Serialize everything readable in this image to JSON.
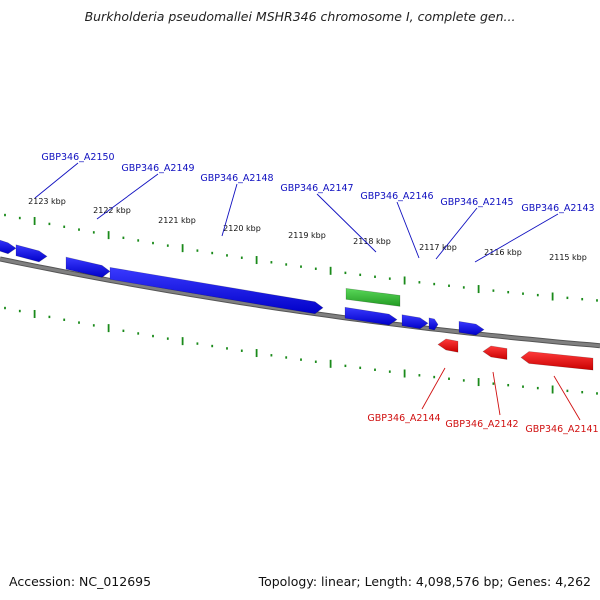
{
  "header": {
    "title": "Burkholderia pseudomallei MSHR346 chromosome I, complete gen..."
  },
  "footer": {
    "accession": "Accession: NC_012695",
    "summary": "Topology: linear; Length: 4,098,576 bp; Genes: 4,262"
  },
  "colors": {
    "forward_gene": "#1010e0",
    "reverse_gene": "#e01010",
    "rna_gene": "#30c030",
    "backbone": "#808080",
    "tick": "#1a8a1a",
    "label_forward": "#1010c0",
    "label_reverse": "#d01010"
  },
  "ruler": {
    "labels": [
      "2123 kbp",
      "2122 kbp",
      "2121 kbp",
      "2120 kbp",
      "2119 kbp",
      "2118 kbp",
      "2117 kbp",
      "2116 kbp",
      "2115 kbp"
    ]
  },
  "forward_labels": [
    "GBP346_A2150",
    "GBP346_A2149",
    "GBP346_A2148",
    "GBP346_A2147",
    "GBP346_A2146",
    "GBP346_A2145",
    "GBP346_A2143"
  ],
  "reverse_labels": [
    "GBP346_A2144",
    "GBP346_A2142",
    "GBP346_A2141"
  ]
}
